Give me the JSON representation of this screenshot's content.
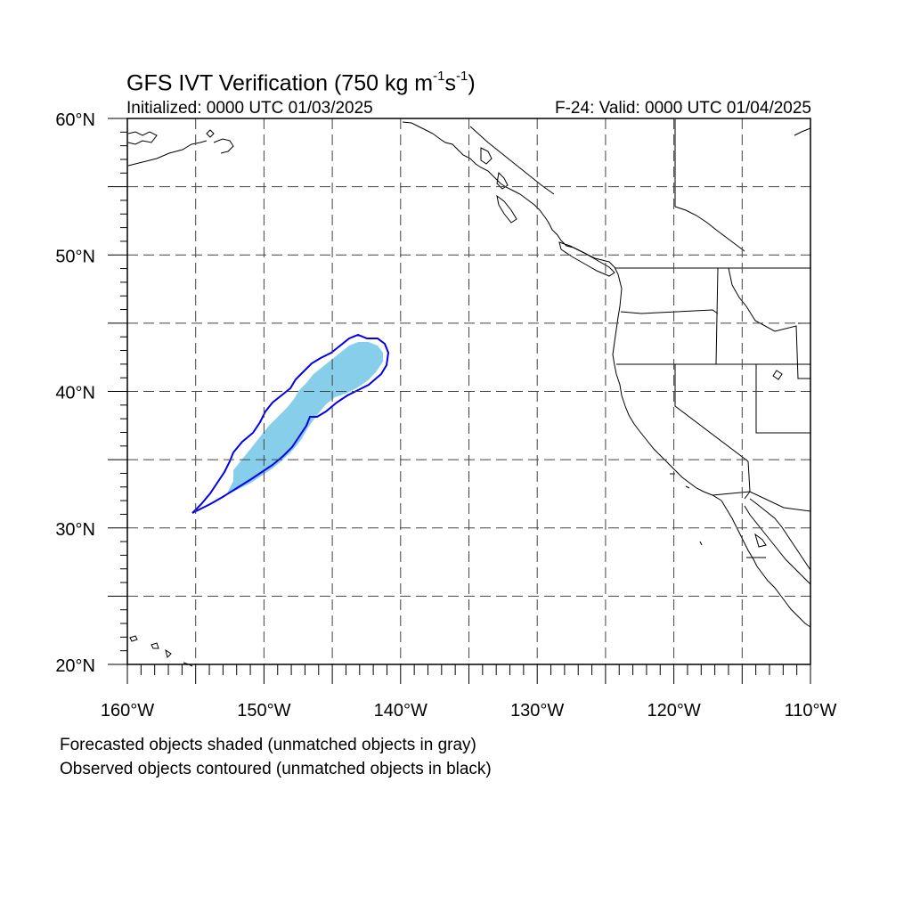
{
  "header": {
    "title_main": "GFS IVT Verification (750 kg m",
    "title_exp1": "-1",
    "title_mid": "s",
    "title_exp2": "-1",
    "title_end": ")",
    "initialized": "Initialized: 0000 UTC 01/03/2025",
    "valid": "F-24: Valid: 0000 UTC 01/04/2025"
  },
  "map": {
    "lat_range": [
      20,
      60
    ],
    "lon_range": [
      -160,
      -110
    ],
    "grid_lines": "dashed",
    "lat_labels": [
      "20°N",
      "30°N",
      "40°N",
      "50°N",
      "60°N"
    ],
    "lon_labels": [
      "160°W",
      "150°W",
      "140°W",
      "130°W",
      "120°W",
      "110°W"
    ],
    "forecast_fill_color": "#87CEEB",
    "observed_contour_color": "#0000EE",
    "coast_color": "#000000"
  },
  "footer": {
    "note1": "Forecasted objects shaded (unmatched objects in gray)",
    "note2": "Observed objects contoured (unmatched objects in black)"
  }
}
